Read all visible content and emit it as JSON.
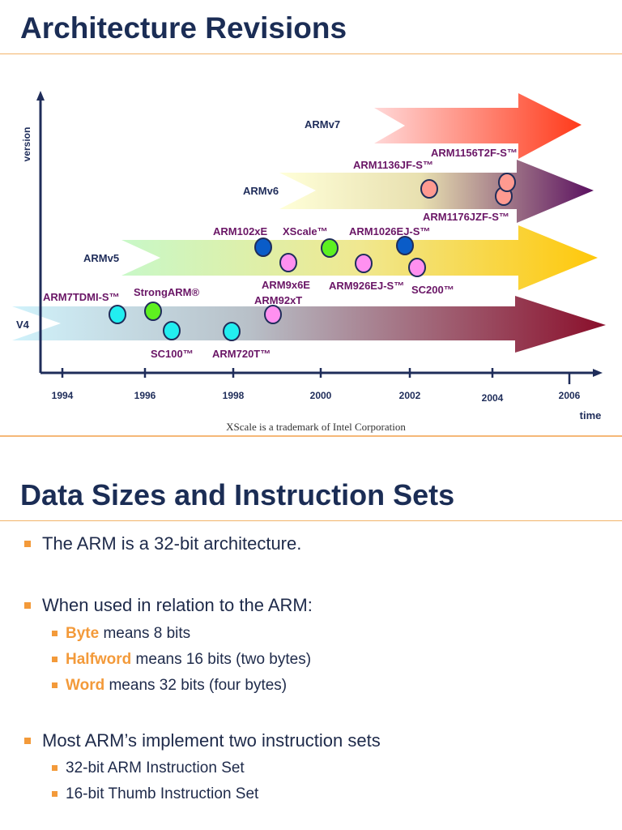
{
  "slide1": {
    "title": "Architecture Revisions",
    "y_axis_label": "version",
    "x_axis_label": "time",
    "years": [
      "1994",
      "1996",
      "1998",
      "2000",
      "2002",
      "2004",
      "2006"
    ],
    "versions": [
      {
        "label": "ARMv7",
        "colors": [
          "#ffd8d8",
          "#ff3a1a"
        ]
      },
      {
        "label": "ARMv6",
        "colors": [
          "#ffffd8",
          "#5a1060"
        ]
      },
      {
        "label": "ARMv5",
        "colors": [
          "#c8f8c8",
          "#ffc80a"
        ]
      },
      {
        "label": "V4",
        "colors": [
          "#d0f2fb",
          "#8a0e2a"
        ]
      }
    ],
    "cores": [
      {
        "label": "ARM7TDMI-S™",
        "color": "#22eef0"
      },
      {
        "label": "StrongARM®",
        "color": "#5ef020"
      },
      {
        "label": "SC100™",
        "color": "#22eef0"
      },
      {
        "label": "ARM720T™",
        "color": "#22eef0"
      },
      {
        "label": "ARM92xT",
        "color": "#ff90f0"
      },
      {
        "label": "ARM102xE",
        "color": "#0a5cc8"
      },
      {
        "label": "XScale™",
        "color": "#5ef020"
      },
      {
        "label": "ARM1026EJ-S™",
        "color": "#0a5cc8"
      },
      {
        "label": "ARM9x6E",
        "color": "#ff90f0"
      },
      {
        "label": "ARM926EJ-S™",
        "color": "#ff90f0"
      },
      {
        "label": "SC200™",
        "color": "#ff90f0"
      },
      {
        "label": "ARM1136JF-S™",
        "color": "#ff9a90"
      },
      {
        "label": "ARM1156T2F-S™",
        "color": "#ff9a90"
      },
      {
        "label": "ARM1176JZF-S™",
        "color": "#ff9a90"
      }
    ],
    "footnote": "XScale is a trademark of Intel Corporation"
  },
  "slide2": {
    "title": "Data Sizes and Instruction Sets",
    "bullets": [
      {
        "text": "The ARM is a 32-bit architecture."
      },
      {
        "text": "When used in relation to the ARM:",
        "sub": [
          {
            "term": "Byte",
            "text": " means 8 bits"
          },
          {
            "term": "Halfword",
            "text": " means 16 bits (two bytes)"
          },
          {
            "term": "Word",
            "text": " means 32 bits (four bytes)"
          }
        ]
      },
      {
        "text": "Most ARM’s implement two instruction sets",
        "sub": [
          {
            "text": "32-bit ARM Instruction Set"
          },
          {
            "text": "16-bit Thumb Instruction Set"
          }
        ]
      }
    ]
  },
  "colors": {
    "accent": "#f39a3a",
    "title": "#1b2d55",
    "core_label": "#6a1666"
  }
}
